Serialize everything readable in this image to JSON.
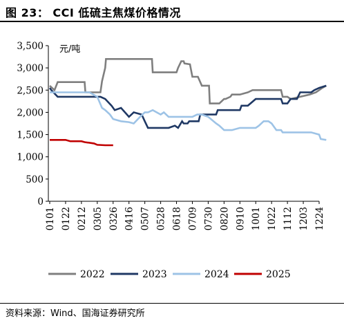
{
  "title": "图 23：  CCI 低硫主焦煤价格情况",
  "source": "资料来源：Wind、国海证券研究所",
  "chart_data": {
    "type": "line",
    "unit_label": "元/吨",
    "ylim": [
      0,
      3500
    ],
    "yticks": [
      0,
      500,
      1000,
      1500,
      2000,
      2500,
      3000,
      3500
    ],
    "ytick_labels": [
      "0",
      "500",
      "1,000",
      "1,500",
      "2,000",
      "2,500",
      "3,000",
      "3,500"
    ],
    "xticks": [
      "0101",
      "0122",
      "0212",
      "0305",
      "0326",
      "0416",
      "0507",
      "0528",
      "0618",
      "0709",
      "0730",
      "0820",
      "0910",
      "1001",
      "1022",
      "1112",
      "1203",
      "1224"
    ],
    "legend_position": "bottom",
    "colors": {
      "2022": "#7f7f7f",
      "2023": "#1f3864",
      "2024": "#9dc3e6",
      "2025": "#c00000"
    },
    "series": [
      {
        "name": "2022",
        "x": [
          0,
          0.3,
          0.5,
          1.0,
          2.2,
          2.25,
          3.2,
          3.3,
          3.5,
          3.55,
          6.45,
          6.5,
          8.0,
          8.1,
          8.3,
          8.45,
          8.5,
          8.85,
          9.0,
          9.35,
          9.6,
          10.05,
          10.1,
          10.7,
          11.0,
          11.1,
          11.4,
          11.5,
          11.7,
          12.0,
          12.5,
          12.8,
          13.1,
          13.5,
          14.6,
          14.7,
          15.0,
          15.2,
          16.4,
          16.8,
          17.0,
          17.2,
          17.45
        ],
        "y": [
          2600,
          2500,
          2680,
          2680,
          2680,
          2450,
          2450,
          2700,
          3000,
          3200,
          3200,
          2900,
          2900,
          3000,
          3150,
          3150,
          3100,
          3080,
          2800,
          2800,
          2600,
          2600,
          2200,
          2200,
          2300,
          2300,
          2350,
          2400,
          2400,
          2400,
          2450,
          2500,
          2500,
          2500,
          2500,
          2350,
          2350,
          2300,
          2400,
          2450,
          2500,
          2550,
          2600
        ]
      },
      {
        "name": "2023",
        "x": [
          0,
          0.1,
          0.5,
          1.0,
          2.0,
          3.0,
          3.2,
          3.5,
          3.9,
          4.1,
          4.5,
          5.0,
          5.3,
          5.8,
          6.0,
          6.2,
          6.5,
          7.0,
          7.5,
          7.9,
          8.1,
          8.35,
          8.45,
          8.7,
          8.8,
          9.0,
          9.4,
          9.5,
          10.5,
          10.6,
          11.6,
          12.0,
          12.1,
          12.5,
          13.0,
          14.0,
          14.6,
          14.7,
          15.0,
          15.2,
          15.6,
          15.8,
          16.2,
          16.5,
          16.7,
          17.0,
          17.45
        ],
        "y": [
          2550,
          2500,
          2350,
          2350,
          2350,
          2350,
          2350,
          2300,
          2150,
          2050,
          2100,
          1900,
          2000,
          1950,
          1800,
          1650,
          1650,
          1650,
          1650,
          1700,
          1650,
          1800,
          1750,
          1750,
          1800,
          1800,
          1800,
          1950,
          1950,
          2050,
          2050,
          2050,
          2150,
          2150,
          2300,
          2300,
          2300,
          2200,
          2200,
          2300,
          2300,
          2450,
          2450,
          2450,
          2500,
          2550,
          2600
        ]
      },
      {
        "name": "2024",
        "x": [
          0,
          0.5,
          1.0,
          2.0,
          2.5,
          3.0,
          3.3,
          3.5,
          3.8,
          4.0,
          4.5,
          5.0,
          5.3,
          5.7,
          6.0,
          6.2,
          6.5,
          7.0,
          7.2,
          7.5,
          8.0,
          8.5,
          9.0,
          9.3,
          9.6,
          10.0,
          10.5,
          10.7,
          11.0,
          11.5,
          12.0,
          12.5,
          13.0,
          13.2,
          13.5,
          13.8,
          14.0,
          14.3,
          14.6,
          14.7,
          15.0,
          15.5,
          16.0,
          16.5,
          17.0,
          17.1,
          17.45
        ],
        "y": [
          2450,
          2450,
          2450,
          2450,
          2450,
          2350,
          2100,
          2050,
          1950,
          1850,
          1800,
          1780,
          1750,
          1900,
          2000,
          2000,
          2050,
          1950,
          2000,
          1900,
          1900,
          1900,
          1900,
          1950,
          1950,
          1900,
          1750,
          1700,
          1600,
          1600,
          1650,
          1650,
          1650,
          1700,
          1800,
          1800,
          1750,
          1600,
          1600,
          1550,
          1550,
          1550,
          1550,
          1550,
          1500,
          1400,
          1380
        ]
      },
      {
        "name": "2025",
        "x": [
          0,
          1.0,
          1.3,
          2.0,
          2.2,
          2.8,
          3.0,
          3.5,
          4.0
        ],
        "y": [
          1380,
          1380,
          1350,
          1350,
          1330,
          1300,
          1270,
          1260,
          1260
        ]
      }
    ]
  }
}
